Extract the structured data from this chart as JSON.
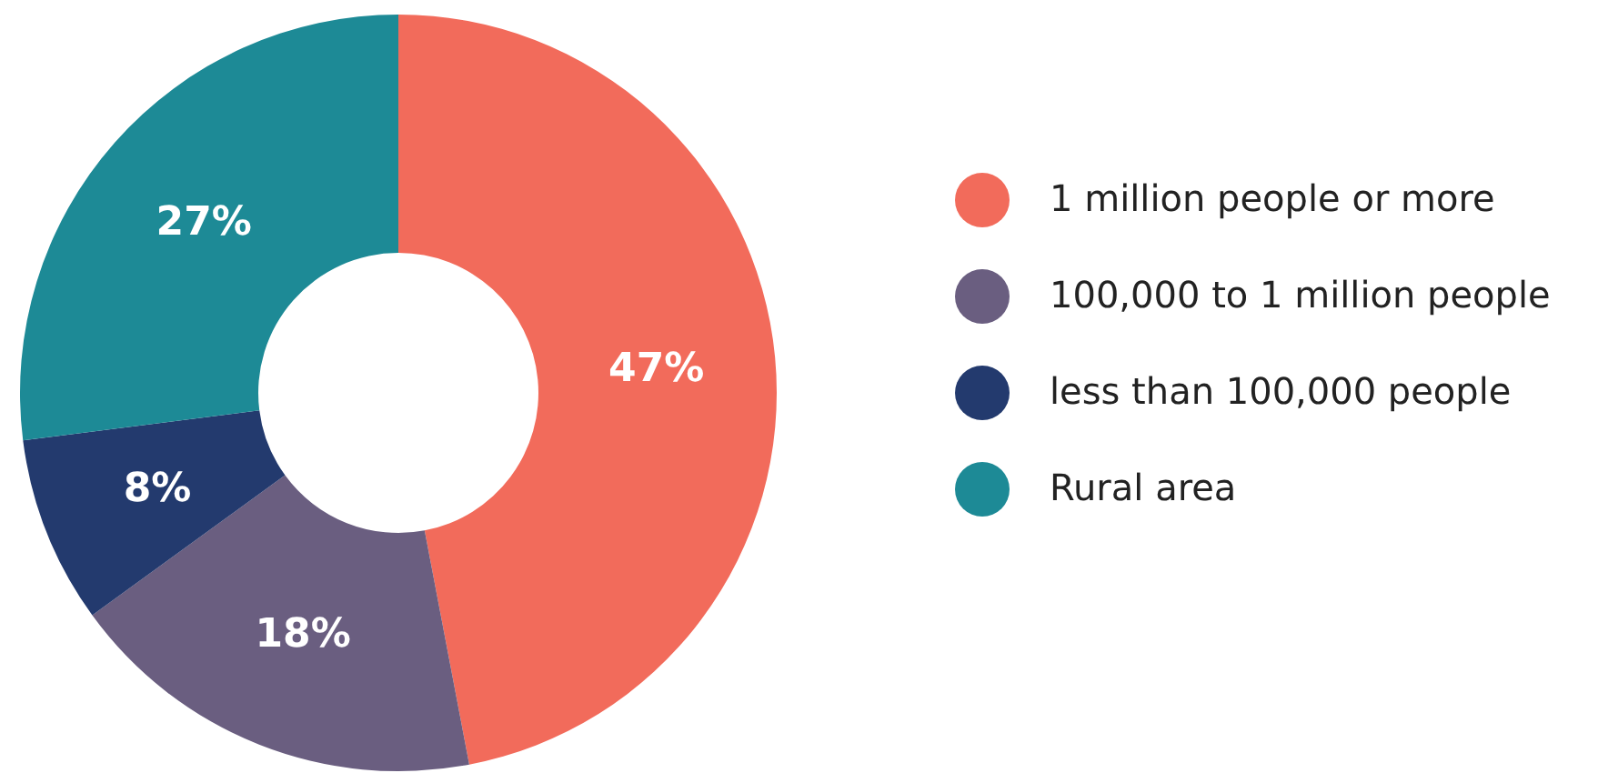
{
  "chart_data": {
    "type": "donut",
    "categories": [
      "1 million people or more",
      "100,000 to 1 million people",
      "less than 100,000 people",
      "Rural area"
    ],
    "values": [
      47,
      18,
      8,
      27
    ],
    "value_labels": [
      "47%",
      "18%",
      "8%",
      "27%"
    ],
    "colors": [
      "#f26b5b",
      "#6a5e80",
      "#233a6e",
      "#1d8a96"
    ],
    "legend": "right"
  }
}
